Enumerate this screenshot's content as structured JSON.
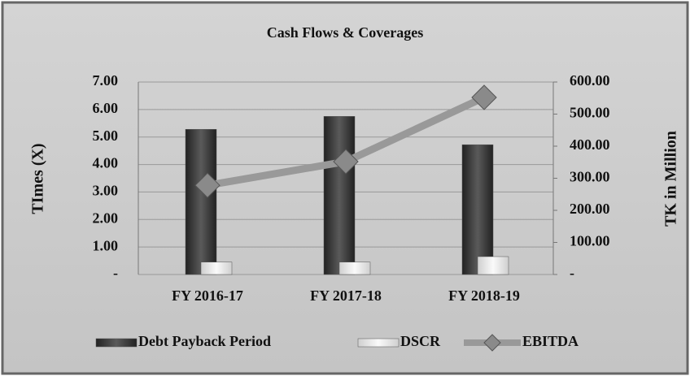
{
  "chart_data": {
    "type": "bar",
    "title": "Cash Flows & Coverages",
    "y_label": "TImes (X)",
    "y2_label": "TK in Million",
    "categories": [
      "FY 2016-17",
      "FY 2017-18",
      "FY 2018-19"
    ],
    "series": [
      {
        "name": "Debt Payback Period",
        "color": "#3a3a3a",
        "type": "bar",
        "values": [
          5.28,
          5.75,
          4.72
        ]
      },
      {
        "name": "DSCR",
        "color": "#e8e8e8",
        "type": "bar",
        "values": [
          0.45,
          0.45,
          0.65
        ]
      },
      {
        "name": "EBITDA",
        "color": "#999999",
        "type": "line",
        "axis": "y2",
        "values": [
          278,
          352,
          552
        ]
      }
    ],
    "ylim": [
      0,
      7
    ],
    "yticks": [
      {
        "value": 0,
        "label": "-"
      },
      {
        "value": 1,
        "label": "1.00"
      },
      {
        "value": 2,
        "label": "2.00"
      },
      {
        "value": 3,
        "label": "3.00"
      },
      {
        "value": 4,
        "label": "4.00"
      },
      {
        "value": 5,
        "label": "5.00"
      },
      {
        "value": 6,
        "label": "6.00"
      },
      {
        "value": 7,
        "label": "7.00"
      }
    ],
    "y2lim": [
      0,
      600
    ],
    "y2ticks": [
      {
        "value": 0,
        "label": "-"
      },
      {
        "value": 100,
        "label": "100.00"
      },
      {
        "value": 200,
        "label": "200.00"
      },
      {
        "value": 300,
        "label": "300.00"
      },
      {
        "value": 400,
        "label": "400.00"
      },
      {
        "value": 500,
        "label": "500.00"
      },
      {
        "value": 600,
        "label": "600.00"
      }
    ],
    "grid": true,
    "legend": "bottom"
  }
}
